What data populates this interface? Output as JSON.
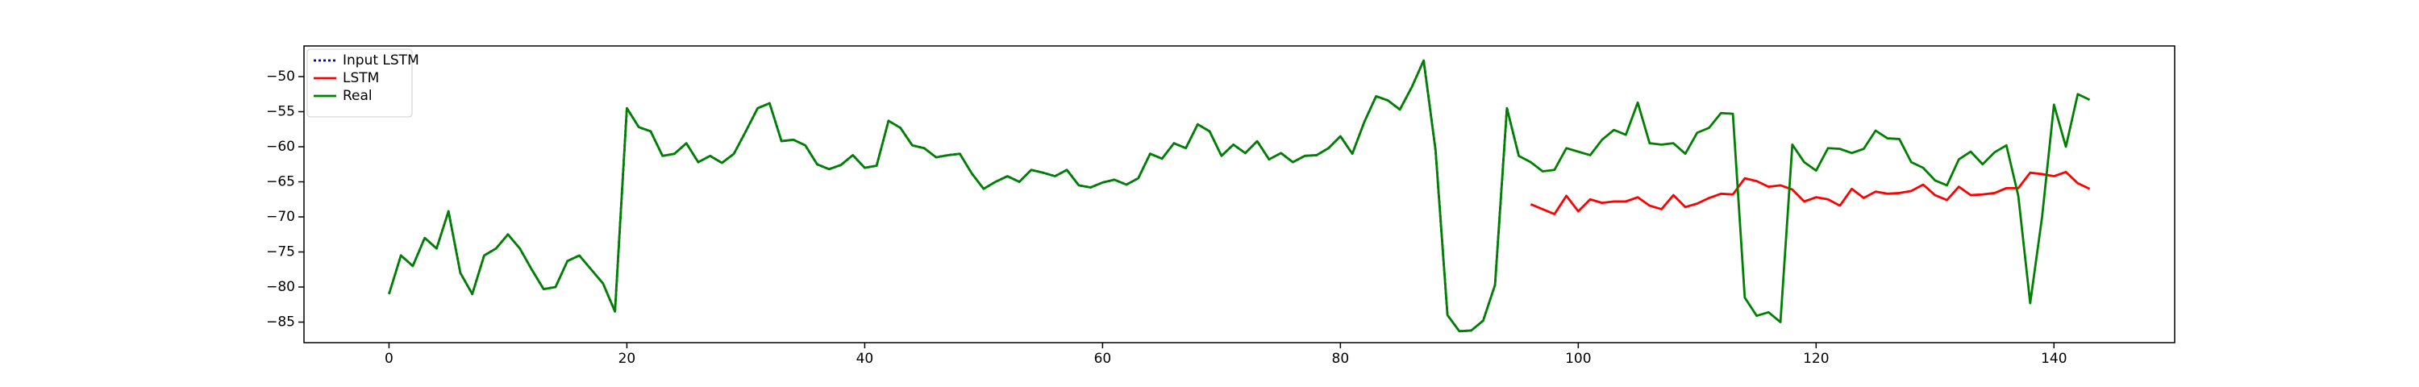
{
  "chart_data": {
    "type": "line",
    "x": [
      0,
      1,
      2,
      3,
      4,
      5,
      6,
      7,
      8,
      9,
      10,
      11,
      12,
      13,
      14,
      15,
      16,
      17,
      18,
      19,
      20,
      21,
      22,
      23,
      24,
      25,
      26,
      27,
      28,
      29,
      30,
      31,
      32,
      33,
      34,
      35,
      36,
      37,
      38,
      39,
      40,
      41,
      42,
      43,
      44,
      45,
      46,
      47,
      48,
      49,
      50,
      51,
      52,
      53,
      54,
      55,
      56,
      57,
      58,
      59,
      60,
      61,
      62,
      63,
      64,
      65,
      66,
      67,
      68,
      69,
      70,
      71,
      72,
      73,
      74,
      75,
      76,
      77,
      78,
      79,
      80,
      81,
      82,
      83,
      84,
      85,
      86,
      87,
      88,
      89,
      90,
      91,
      92,
      93,
      94,
      95,
      96,
      97,
      98,
      99,
      100,
      101,
      102,
      103,
      104,
      105,
      106,
      107,
      108,
      109,
      110,
      111,
      112,
      113,
      114,
      115,
      116,
      117,
      118,
      119,
      120,
      121,
      122,
      123,
      124,
      125,
      126,
      127,
      128,
      129,
      130,
      131,
      132,
      133,
      134,
      135,
      136,
      137,
      138,
      139,
      140,
      141,
      142,
      143
    ],
    "series": [
      {
        "name": "Input LSTM",
        "color": "#0000cc",
        "linestyle": "dotted",
        "values": [
          -81,
          -75.5,
          -77,
          -73,
          -74.5,
          -69.2,
          -78,
          -81,
          -75.5,
          -74.5,
          -72.5,
          -74.5,
          -77.5,
          -80.3,
          -80,
          -76.3,
          -75.5,
          -77.5,
          -79.5,
          -83.5,
          -54.5,
          -57.2,
          -57.8,
          -61.3,
          -61,
          -59.5,
          -62.2,
          -61.3,
          -62.3,
          -61,
          -57.8,
          -54.5,
          -53.8,
          -59.2,
          -59,
          -59.8,
          -62.5,
          -63.2,
          -62.6,
          -61.2,
          -63,
          -62.7,
          -56.3,
          -57.3,
          -59.8,
          -60.2,
          -61.5,
          -61.2,
          -61,
          -63.8,
          -66,
          -65,
          -64.2,
          -65,
          -63.3,
          -63.7,
          -64.2,
          -63.3,
          -65.5,
          -65.8,
          -65.1,
          -64.7,
          -65.4,
          -64.5,
          -61,
          -61.7,
          -59.5,
          -60.2,
          -56.8,
          -57.8,
          -61.3,
          -59.7,
          -60.9,
          -59.2,
          -61.8,
          -60.9,
          -62.2,
          -61.3,
          -61.2,
          -60.2,
          -58.5,
          -61,
          -56.5,
          -52.8,
          -53.4,
          -54.7,
          -51.5,
          -47.7,
          -60.5,
          -84,
          -86.3,
          -86.2,
          -84.8,
          -79.7,
          -54.5,
          -61.3,
          null,
          null,
          null,
          null,
          null,
          null,
          null,
          null,
          null,
          null,
          null,
          null,
          null,
          null,
          null,
          null,
          null,
          null,
          null,
          null,
          null,
          null,
          null,
          null,
          null,
          null,
          null,
          null,
          null,
          null,
          null,
          null,
          null,
          null,
          null,
          null,
          null,
          null,
          null,
          null,
          null,
          null,
          null,
          null,
          null,
          null,
          null,
          null
        ]
      },
      {
        "name": "LSTM",
        "color": "#ff0000",
        "linestyle": "solid",
        "values": [
          null,
          null,
          null,
          null,
          null,
          null,
          null,
          null,
          null,
          null,
          null,
          null,
          null,
          null,
          null,
          null,
          null,
          null,
          null,
          null,
          null,
          null,
          null,
          null,
          null,
          null,
          null,
          null,
          null,
          null,
          null,
          null,
          null,
          null,
          null,
          null,
          null,
          null,
          null,
          null,
          null,
          null,
          null,
          null,
          null,
          null,
          null,
          null,
          null,
          null,
          null,
          null,
          null,
          null,
          null,
          null,
          null,
          null,
          null,
          null,
          null,
          null,
          null,
          null,
          null,
          null,
          null,
          null,
          null,
          null,
          null,
          null,
          null,
          null,
          null,
          null,
          null,
          null,
          null,
          null,
          null,
          null,
          null,
          null,
          null,
          null,
          null,
          null,
          null,
          null,
          null,
          null,
          null,
          null,
          null,
          null,
          -68.2,
          -68.9,
          -69.6,
          -67,
          -69.2,
          -67.5,
          -68,
          -67.8,
          -67.8,
          -67.2,
          -68.4,
          -68.9,
          -66.9,
          -68.6,
          -68.1,
          -67.3,
          -66.7,
          -66.8,
          -64.5,
          -64.9,
          -65.7,
          -65.5,
          -66.1,
          -67.8,
          -67.2,
          -67.5,
          -68.4,
          -66,
          -67.3,
          -66.4,
          -66.7,
          -66.6,
          -66.3,
          -65.4,
          -66.9,
          -67.6,
          -65.7,
          -66.9,
          -66.8,
          -66.6,
          -65.9,
          -65.9,
          -63.7,
          -63.9,
          -64.2,
          -63.6,
          -65.2,
          -66
        ]
      },
      {
        "name": "Real",
        "color": "#008000",
        "linestyle": "solid",
        "values": [
          -81,
          -75.5,
          -77,
          -73,
          -74.5,
          -69.2,
          -78,
          -81,
          -75.5,
          -74.5,
          -72.5,
          -74.5,
          -77.5,
          -80.3,
          -80,
          -76.3,
          -75.5,
          -77.5,
          -79.5,
          -83.5,
          -54.5,
          -57.2,
          -57.8,
          -61.3,
          -61,
          -59.5,
          -62.2,
          -61.3,
          -62.3,
          -61,
          -57.8,
          -54.5,
          -53.8,
          -59.2,
          -59,
          -59.8,
          -62.5,
          -63.2,
          -62.6,
          -61.2,
          -63,
          -62.7,
          -56.3,
          -57.3,
          -59.8,
          -60.2,
          -61.5,
          -61.2,
          -61,
          -63.8,
          -66,
          -65,
          -64.2,
          -65,
          -63.3,
          -63.7,
          -64.2,
          -63.3,
          -65.5,
          -65.8,
          -65.1,
          -64.7,
          -65.4,
          -64.5,
          -61,
          -61.7,
          -59.5,
          -60.2,
          -56.8,
          -57.8,
          -61.3,
          -59.7,
          -60.9,
          -59.2,
          -61.8,
          -60.9,
          -62.2,
          -61.3,
          -61.2,
          -60.2,
          -58.5,
          -61,
          -56.5,
          -52.8,
          -53.4,
          -54.7,
          -51.5,
          -47.7,
          -60.5,
          -84,
          -86.3,
          -86.2,
          -84.8,
          -79.7,
          -54.5,
          -61.3,
          -62.2,
          -63.5,
          -63.3,
          -60.2,
          -60.7,
          -61.2,
          -59,
          -57.6,
          -58.3,
          -53.7,
          -59.5,
          -59.7,
          -59.5,
          -61,
          -58,
          -57.3,
          -55.2,
          -55.3,
          -81.5,
          -84.1,
          -83.6,
          -85,
          -59.7,
          -62.2,
          -63.4,
          -60.2,
          -60.3,
          -60.9,
          -60.3,
          -57.7,
          -58.8,
          -58.9,
          -62.2,
          -63,
          -64.8,
          -65.5,
          -61.8,
          -60.7,
          -62.5,
          -60.8,
          -59.8,
          -67,
          -82.3,
          -70,
          -54,
          -60,
          -52.5,
          -53.3
        ]
      }
    ],
    "xlim": [
      -7.15,
      150.15
    ],
    "ylim": [
      -87.93,
      -45.63
    ],
    "xticks": [
      0,
      20,
      40,
      60,
      80,
      100,
      120,
      140
    ],
    "yticks": [
      {
        "value": -85,
        "label": "−85"
      },
      {
        "value": -80,
        "label": "−80"
      },
      {
        "value": -75,
        "label": "−75"
      },
      {
        "value": -70,
        "label": "−70"
      },
      {
        "value": -65,
        "label": "−65"
      },
      {
        "value": -60,
        "label": "−60"
      },
      {
        "value": -55,
        "label": "−55"
      },
      {
        "value": -50,
        "label": "−50"
      }
    ],
    "grid": false,
    "legend": "upper left"
  }
}
